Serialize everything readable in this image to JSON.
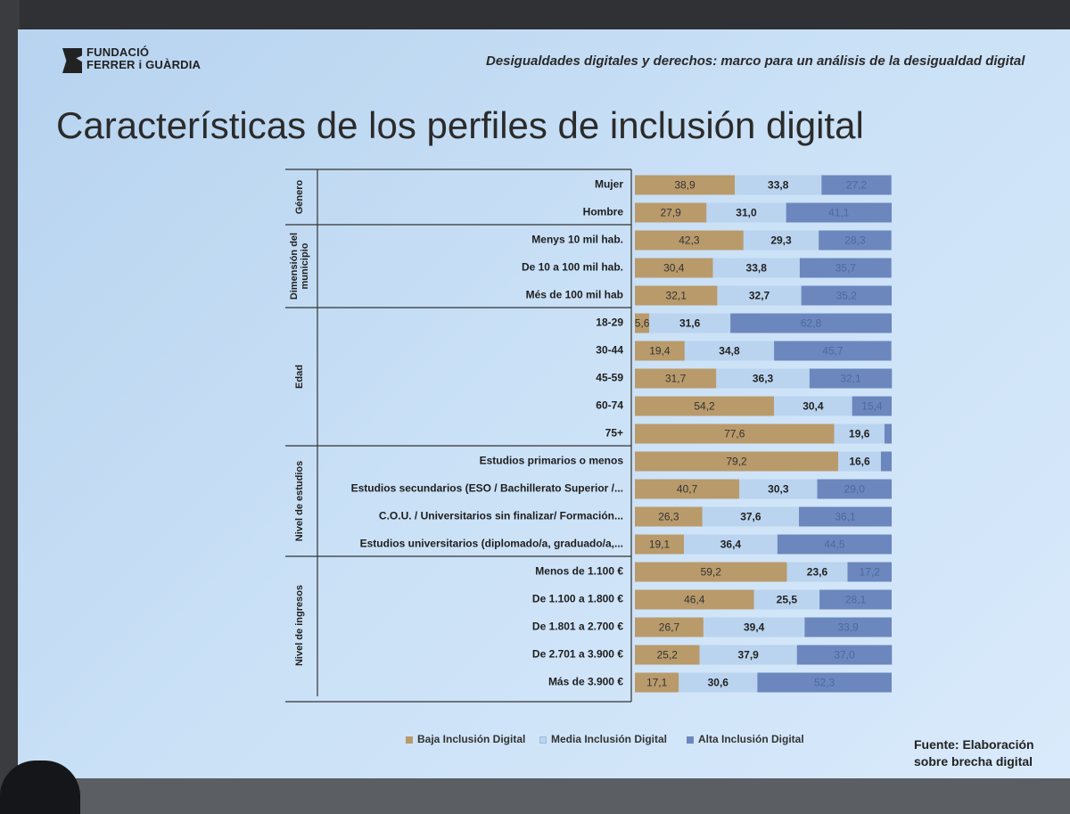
{
  "header": {
    "logo_line1": "FUNDACIÓ",
    "logo_line2": "FERRER i GUÀRDIA",
    "subtitle": "Desigualdades digitales y derechos: marco para un análisis de la desigualdad digital"
  },
  "slide_title": "Características de los perfiles de inclusión digital",
  "legend": {
    "baja": "Baja Inclusión Digital",
    "media": "Media Inclusión Digital",
    "alta": "Alta Inclusión Digital"
  },
  "source": {
    "line1": "Fuente: Elaboración",
    "line2": "sobre brecha digital"
  },
  "colors": {
    "baja": "#b99a6b",
    "media": "#bad4ef",
    "alta": "#6c87bd"
  },
  "chart_data": {
    "type": "bar",
    "orientation": "horizontal",
    "stacked": true,
    "grid": false,
    "legend_position": "bottom",
    "series": [
      {
        "name": "Baja Inclusión Digital",
        "values": [
          38.9,
          27.9,
          42.3,
          30.4,
          32.1,
          5.6,
          19.4,
          31.7,
          54.2,
          77.6,
          79.2,
          40.7,
          26.3,
          19.1,
          59.2,
          46.4,
          26.7,
          25.2,
          17.1
        ]
      },
      {
        "name": "Media Inclusión Digital",
        "values": [
          33.8,
          31.0,
          29.3,
          33.8,
          32.7,
          31.6,
          34.8,
          36.3,
          30.4,
          19.6,
          16.6,
          30.3,
          37.6,
          36.4,
          23.6,
          25.5,
          39.4,
          37.9,
          30.6
        ]
      },
      {
        "name": "Alta Inclusión Digital",
        "values": [
          27.2,
          41.1,
          28.3,
          35.7,
          35.2,
          62.8,
          45.7,
          32.1,
          15.4,
          null,
          null,
          29.0,
          36.1,
          44.5,
          17.2,
          28.1,
          33.9,
          37.0,
          52.3
        ]
      }
    ],
    "categories": [
      "Mujer",
      "Hombre",
      "Menys 10 mil hab.",
      "De 10 a 100 mil hab.",
      "Més de 100 mil hab",
      "18-29",
      "30-44",
      "45-59",
      "60-74",
      "75+",
      "Estudios primarios o menos",
      "Estudios secundarios (ESO / Bachillerato Superior /...",
      "C.O.U. / Universitarios sin finalizar/ Formación...",
      "Estudios universitarios (diplomado/a, graduado/a,...",
      "Menos de 1.100 €",
      "De 1.100 a 1.800 €",
      "De 1.801 a 2.700 €",
      "De 2.701 a 3.900 €",
      "Más de 3.900 €"
    ],
    "value_labels": [
      [
        "38,9",
        "33,8",
        "27,2"
      ],
      [
        "27,9",
        "31,0",
        "41,1"
      ],
      [
        "42,3",
        "29,3",
        "28,3"
      ],
      [
        "30,4",
        "33,8",
        "35,7"
      ],
      [
        "32,1",
        "32,7",
        "35,2"
      ],
      [
        "5,6",
        "31,6",
        "62,8"
      ],
      [
        "19,4",
        "34,8",
        "45,7"
      ],
      [
        "31,7",
        "36,3",
        "32,1"
      ],
      [
        "54,2",
        "30,4",
        "15,4"
      ],
      [
        "77,6",
        "19,6",
        ""
      ],
      [
        "79,2",
        "16,6",
        ""
      ],
      [
        "40,7",
        "30,3",
        "29,0"
      ],
      [
        "26,3",
        "37,6",
        "36,1"
      ],
      [
        "19,1",
        "36,4",
        "44,5"
      ],
      [
        "59,2",
        "23,6",
        "17,2"
      ],
      [
        "46,4",
        "25,5",
        "28,1"
      ],
      [
        "26,7",
        "39,4",
        "33,9"
      ],
      [
        "25,2",
        "37,9",
        "37,0"
      ],
      [
        "17,1",
        "30,6",
        "52,3"
      ]
    ],
    "groups": [
      {
        "name": "Género",
        "start": 0,
        "count": 2
      },
      {
        "name": "Dimensión del municipio",
        "start": 2,
        "count": 3
      },
      {
        "name": "Edad",
        "start": 5,
        "count": 5
      },
      {
        "name": "Nivel de estudios",
        "start": 10,
        "count": 4
      },
      {
        "name": "Nivel de ingresos",
        "start": 14,
        "count": 5
      }
    ],
    "xlim": [
      0,
      100
    ]
  }
}
